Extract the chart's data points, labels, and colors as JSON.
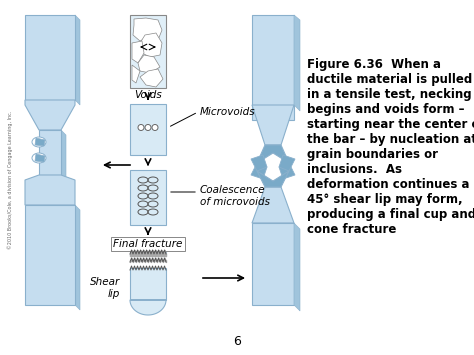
{
  "bg_color": "#ffffff",
  "bar_fill": "#c5ddef",
  "bar_fill2": "#d8eaf5",
  "bar_edge": "#8ab0cc",
  "bar_dark": "#7aaac8",
  "bar_shadow": "#a0c4dc",
  "figure_number": "Figure 6.36",
  "caption_text": "When a\nductile material is pulled\nin a tensile test, necking\nbegins and voids form –\nstarting near the center of\nthe bar – by nucleation at\ngrain boundaries or\ninclusions.  As\ndeformation continues a\n45° shear lip may form,\nproducing a final cup and\ncone fracture",
  "page_number": "6",
  "label_voids": "Voids",
  "label_microvoids": "Microvoids",
  "label_coalescence": "Coalescence\nof microvoids",
  "label_final": "Final fracture",
  "label_shear": "Shear\nlip",
  "label_fontsize": 7,
  "caption_fontsize": 8.5,
  "copyright": "©2010 Brooks/Cole, a division of Cengage Learning, Inc."
}
